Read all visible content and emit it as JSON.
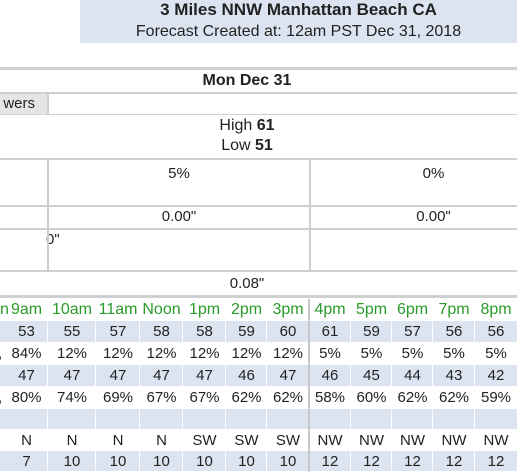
{
  "header": {
    "title": "3 Miles NNW Manhattan Beach CA",
    "subtitle": "Forecast Created at: 12am PST Dec 31, 2018"
  },
  "day": {
    "date": "Mon Dec 31",
    "weather": "wers",
    "high_label": "High",
    "high": 61,
    "low_label": "Low",
    "low": 51,
    "pop": [
      "5%",
      "0%"
    ],
    "qpf": [
      "0.00\"",
      "0.00\""
    ],
    "snow": "0\"",
    "total": "0.08\""
  },
  "hourly": {
    "hours_cut": "n",
    "hours": [
      "9am",
      "10am",
      "11am",
      "Noon",
      "1pm",
      "2pm",
      "3pm",
      "4pm",
      "5pm",
      "6pm",
      "7pm",
      "8pm"
    ],
    "rows": [
      {
        "cells": [
          53,
          55,
          57,
          58,
          58,
          59,
          60,
          61,
          59,
          57,
          56,
          56
        ]
      },
      {
        "cut": ",",
        "cells": [
          "84%",
          "12%",
          "12%",
          "12%",
          "12%",
          "12%",
          "12%",
          "5%",
          "5%",
          "5%",
          "5%",
          "5%"
        ]
      },
      {
        "cells": [
          47,
          47,
          47,
          47,
          47,
          46,
          47,
          46,
          45,
          44,
          43,
          42
        ]
      },
      {
        "cut": ",",
        "cells": [
          "80%",
          "74%",
          "69%",
          "67%",
          "67%",
          "62%",
          "62%",
          "58%",
          "60%",
          "62%",
          "62%",
          "59%"
        ]
      },
      {
        "cells": []
      },
      {
        "cells": [
          "N",
          "N",
          "N",
          "N",
          "SW",
          "SW",
          "SW",
          "NW",
          "NW",
          "NW",
          "NW",
          "NW"
        ]
      },
      {
        "cells": [
          7,
          10,
          10,
          10,
          10,
          10,
          10,
          12,
          12,
          12,
          12,
          12
        ]
      }
    ]
  }
}
